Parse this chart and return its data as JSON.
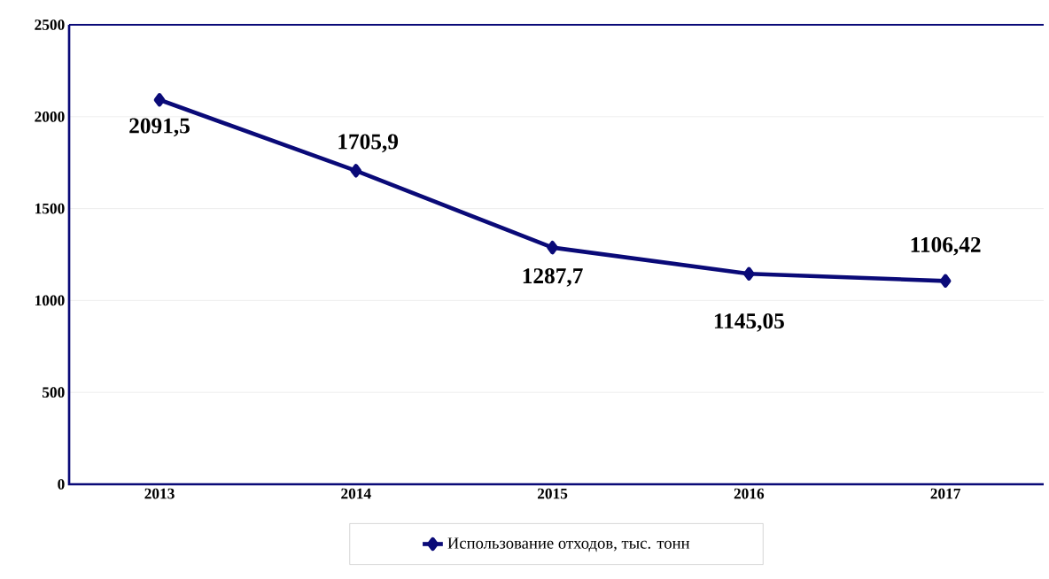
{
  "chart_data": {
    "type": "line",
    "categories": [
      "2013",
      "2014",
      "2015",
      "2016",
      "2017"
    ],
    "series": [
      {
        "name": "Использование  отходов, тыс. тонн",
        "color": "#0a0a78",
        "values": [
          2091.5,
          1705.9,
          1287.7,
          1145.05,
          1106.42
        ],
        "value_labels": [
          "2091,5",
          "1705,9",
          "1287,7",
          "1145,05",
          "1106,42"
        ]
      }
    ],
    "ylim": [
      0,
      2500
    ],
    "yticks": [
      0,
      500,
      1000,
      1500,
      2000,
      2500
    ],
    "grid": "y",
    "legend": "bottom",
    "marker": "diamond",
    "line_style": "solid"
  }
}
